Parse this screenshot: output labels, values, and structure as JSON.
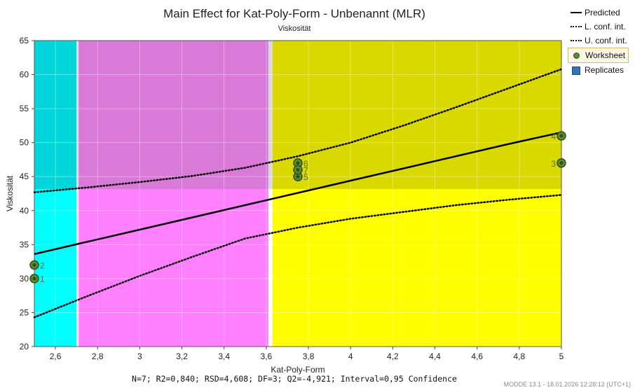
{
  "chart_data": {
    "type": "line",
    "title": "Main Effect for Kat-Poly-Form - Unbenannt (MLR)",
    "subtitle": "Viskosität",
    "xlabel": "Kat-Poly-Form",
    "ylabel": "Viskosität",
    "xlim": [
      2.5,
      5
    ],
    "ylim": [
      20,
      65
    ],
    "x_ticks": [
      "2,6",
      "2,8",
      "3",
      "3,2",
      "3,4",
      "3,6",
      "3,8",
      "4",
      "4,2",
      "4,4",
      "4,6",
      "4,8",
      "5"
    ],
    "y_ticks": [
      "20",
      "25",
      "30",
      "35",
      "40",
      "45",
      "50",
      "55",
      "60",
      "65"
    ],
    "grid": true,
    "legend_position": "right",
    "bands": [
      {
        "x": [
          2.5,
          2.7
        ],
        "color_top": "#00d6d9",
        "color_bottom": "#00ffff"
      },
      {
        "x": [
          2.7,
          2.71
        ],
        "color_top": "#e0e0e0",
        "color_bottom": "#ffffff"
      },
      {
        "x": [
          2.71,
          3.61
        ],
        "color_top": "#d97ad9",
        "color_bottom": "#ff80ff"
      },
      {
        "x": [
          3.61,
          3.63
        ],
        "color_top": "#d9d9d9",
        "color_bottom": "#ffffff"
      },
      {
        "x": [
          3.63,
          5.0
        ],
        "color_top": "#d9d900",
        "color_bottom": "#ffff00"
      }
    ],
    "series": [
      {
        "name": "Predicted",
        "style": "solid",
        "x": [
          2.5,
          2.75,
          3.0,
          3.25,
          3.5,
          3.75,
          4.0,
          4.25,
          4.5,
          4.75,
          5.0
        ],
        "y": [
          33.6,
          35.4,
          37.2,
          39.0,
          40.8,
          42.6,
          44.4,
          46.2,
          48.0,
          49.8,
          51.5
        ]
      },
      {
        "name": "L. conf. int.",
        "style": "dotted",
        "x": [
          2.5,
          2.75,
          3.0,
          3.25,
          3.5,
          3.75,
          4.0,
          4.25,
          4.5,
          4.75,
          5.0
        ],
        "y": [
          24.3,
          27.4,
          30.4,
          33.2,
          35.9,
          37.5,
          38.8,
          39.8,
          40.8,
          41.6,
          42.3
        ]
      },
      {
        "name": "U. conf. int.",
        "style": "dotted",
        "x": [
          2.5,
          2.75,
          3.0,
          3.25,
          3.5,
          3.75,
          4.0,
          4.25,
          4.5,
          4.75,
          5.0
        ],
        "y": [
          42.7,
          43.4,
          44.2,
          45.1,
          46.3,
          48.0,
          50.0,
          52.5,
          55.2,
          58.0,
          60.8
        ]
      }
    ],
    "points": [
      {
        "label": "1",
        "x": 2.5,
        "y": 30
      },
      {
        "label": "2",
        "x": 2.5,
        "y": 32
      },
      {
        "label": "3",
        "x": 5.0,
        "y": 47
      },
      {
        "label": "4",
        "x": 5.0,
        "y": 51
      },
      {
        "label": "5",
        "x": 3.75,
        "y": 45
      },
      {
        "label": "6",
        "x": 3.75,
        "y": 47
      },
      {
        "label": "7",
        "x": 3.75,
        "y": 46
      }
    ],
    "legend": [
      "Predicted",
      "L. conf. int.",
      "U. conf. int.",
      "Worksheet",
      "Replicates"
    ],
    "stats": "N=7; R2=0,840; RSD=4,608; DF=3; Q2=-4,921; Interval=0,95 Confidence"
  },
  "footer": "MODDE 13.1 - 18.01.2026 12:28:12 (UTC+1)"
}
